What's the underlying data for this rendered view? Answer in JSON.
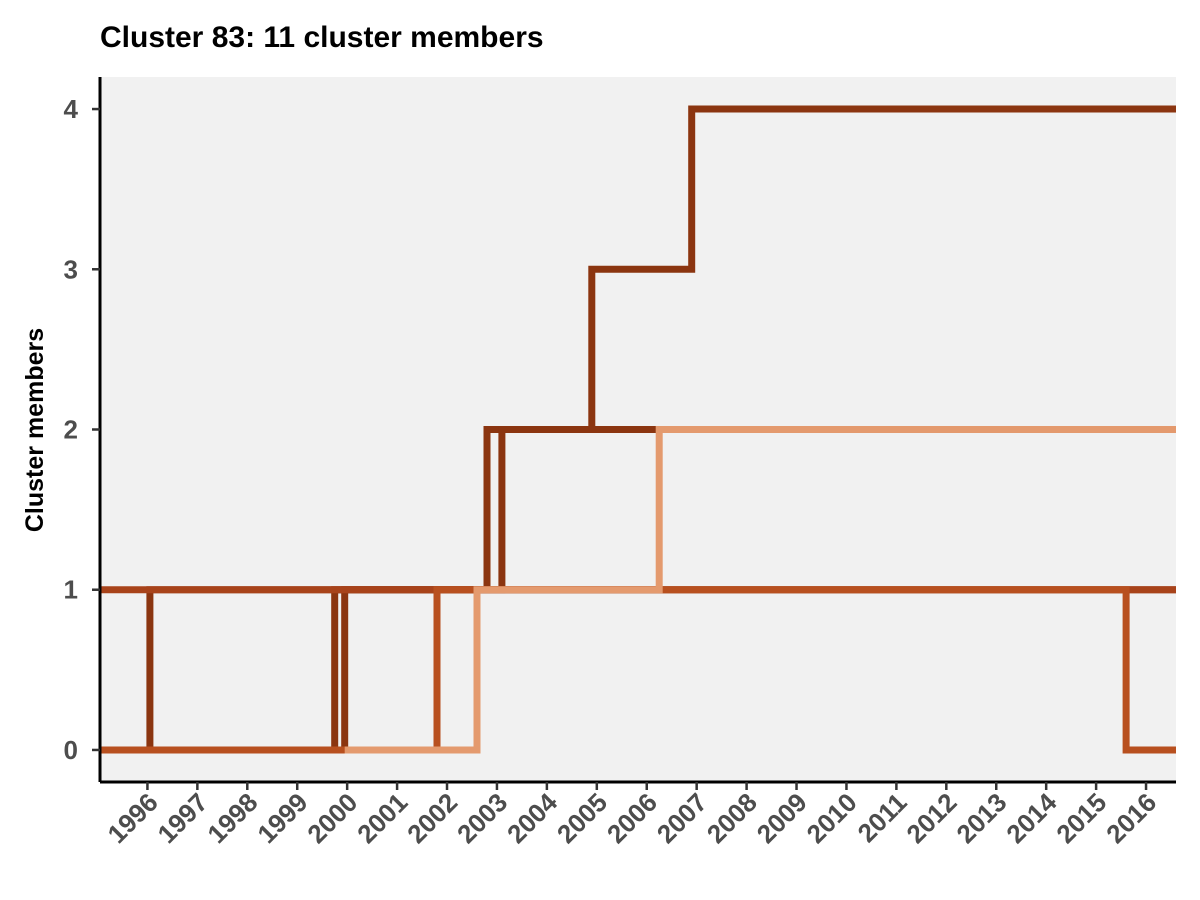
{
  "chart_data": {
    "type": "line",
    "step": true,
    "title": "Cluster 83: 11 cluster members",
    "xlabel": "",
    "ylabel": "Cluster members",
    "xlim": [
      1995.05,
      2016.6
    ],
    "ylim": [
      -0.2,
      4.2
    ],
    "x_ticks": [
      1996,
      1997,
      1998,
      1999,
      2000,
      2001,
      2002,
      2003,
      2004,
      2005,
      2006,
      2007,
      2008,
      2009,
      2010,
      2011,
      2012,
      2013,
      2014,
      2015,
      2016
    ],
    "x_tick_labels": [
      "1996",
      "1997",
      "1998",
      "1999",
      "2000",
      "2001",
      "2002",
      "2003",
      "2004",
      "2005",
      "2006",
      "2007",
      "2008",
      "2009",
      "2010",
      "2011",
      "2012",
      "2013",
      "2014",
      "2015",
      "2016"
    ],
    "y_ticks": [
      0,
      1,
      2,
      3,
      4
    ],
    "y_tick_labels": [
      "0",
      "1",
      "2",
      "3",
      "4"
    ],
    "grid": false,
    "legend": "none",
    "panel_background": "#f1f1f1",
    "series": [
      {
        "color": "#8b3510",
        "x": [
          1995.05,
          1996.05,
          2016.6
        ],
        "y": [
          0,
          1,
          1
        ]
      },
      {
        "color": "#8b3510",
        "x": [
          1995.05,
          1999.75,
          2002.8,
          2004.9,
          2006.9,
          2016.6
        ],
        "y": [
          0,
          1,
          2,
          3,
          4,
          4
        ]
      },
      {
        "color": "#8b3510",
        "x": [
          1995.05,
          1999.95,
          2003.1,
          2016.6
        ],
        "y": [
          0,
          1,
          2,
          2
        ]
      },
      {
        "color": "#a8431a",
        "x": [
          1995.05,
          2016.6
        ],
        "y": [
          1,
          1
        ]
      },
      {
        "color": "#b8501f",
        "x": [
          1995.05,
          2001.8,
          2015.6,
          2016.6
        ],
        "y": [
          0,
          1,
          0,
          0
        ]
      },
      {
        "color": "#e49a6e",
        "x": [
          1999.95,
          2002.6,
          2006.25,
          2016.6
        ],
        "y": [
          0,
          1,
          2,
          2
        ]
      }
    ]
  }
}
